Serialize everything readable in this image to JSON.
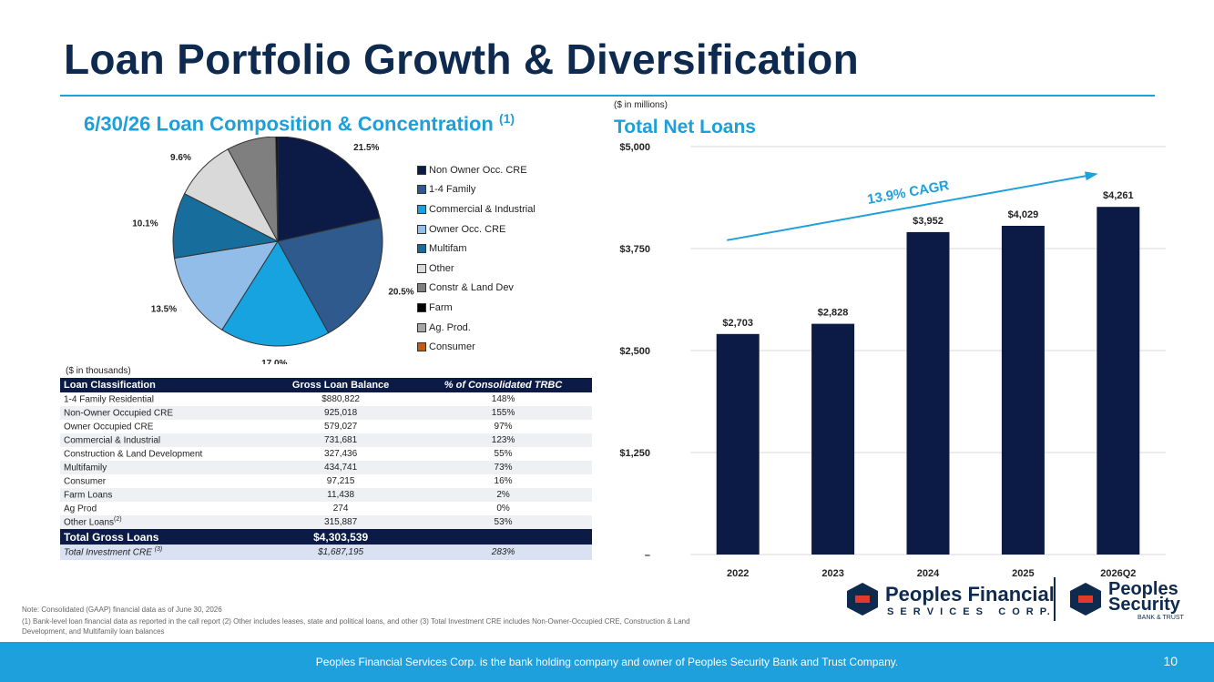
{
  "title": "Loan Portfolio Growth & Diversification",
  "left_section": {
    "title": "6/30/26 Loan Composition & Concentration",
    "note_marker": "(1)"
  },
  "right_section": {
    "unit_note": "($ in millions)",
    "title": "Total Net Loans"
  },
  "table_unit_note": "($ in thousands)",
  "colors": {
    "navy": "#0b1b45",
    "accent": "#1ea0dc",
    "title": "#0e2a4e"
  },
  "chart_data": [
    {
      "type": "pie",
      "title": "6/30/26 Loan Composition & Concentration",
      "legend_position": "right",
      "slices": [
        {
          "label": "Non Owner Occ. CRE",
          "value": 21.5,
          "value_label": "21.5%",
          "color": "#0b1b45"
        },
        {
          "label": "1-4 Family",
          "value": 20.5,
          "value_label": "20.5%",
          "color": "#2e5a8e"
        },
        {
          "label": "Commercial & Industrial",
          "value": 17.0,
          "value_label": "17.0%",
          "color": "#16a3e0"
        },
        {
          "label": "Owner Occ. CRE",
          "value": 13.5,
          "value_label": "13.5%",
          "color": "#93bde9"
        },
        {
          "label": "Multifam",
          "value": 10.1,
          "value_label": "10.1%",
          "color": "#176d9b"
        },
        {
          "label": "Other",
          "value": 9.6,
          "value_label": "9.6%",
          "color": "#d9d9d9"
        },
        {
          "label": "Constr & Land Dev",
          "value": 7.6,
          "value_label": "7.6%",
          "color": "#7f7f7f"
        },
        {
          "label": "Farm",
          "value": 0.3,
          "value_label": "0.3%",
          "color": "#000000"
        },
        {
          "label": "Ag. Prod.",
          "value": 0.0,
          "value_label": "",
          "color": "#a6a6a6"
        },
        {
          "label": "Consumer",
          "value": 0.0,
          "value_label": "",
          "color": "#c55a11"
        }
      ]
    },
    {
      "type": "bar",
      "title": "Total Net Loans",
      "unit": "($ in millions)",
      "categories": [
        "2022",
        "2023",
        "2024",
        "2025",
        "2026Q2"
      ],
      "values": [
        2703,
        2828,
        3952,
        4029,
        4261
      ],
      "value_labels": [
        "$2,703",
        "$2,828",
        "$3,952",
        "$4,029",
        "$4,261"
      ],
      "ylim": [
        0,
        5000
      ],
      "yticks": [
        0,
        1250,
        2500,
        3750,
        5000
      ],
      "ytick_labels": [
        "–",
        "$1,250",
        "$2,500",
        "$3,750",
        "$5,000"
      ],
      "grid": true,
      "annotation": "13.9% CAGR",
      "bar_color": "#0b1b45"
    }
  ],
  "table": {
    "headers": [
      "Loan Classification",
      "Gross Loan Balance",
      "% of Consolidated TRBC"
    ],
    "rows": [
      {
        "name": "1-4 Family Residential",
        "sup": "",
        "balance": "$880,822",
        "pct": "148%"
      },
      {
        "name": "Non-Owner Occupied CRE",
        "sup": "",
        "balance": "925,018",
        "pct": "155%"
      },
      {
        "name": "Owner Occupied CRE",
        "sup": "",
        "balance": "579,027",
        "pct": "97%"
      },
      {
        "name": "Commercial & Industrial",
        "sup": "",
        "balance": "731,681",
        "pct": "123%"
      },
      {
        "name": "Construction & Land Development",
        "sup": "",
        "balance": "327,436",
        "pct": "55%"
      },
      {
        "name": "Multifamily",
        "sup": "",
        "balance": "434,741",
        "pct": "73%"
      },
      {
        "name": "Consumer",
        "sup": "",
        "balance": "97,215",
        "pct": "16%"
      },
      {
        "name": "Farm Loans",
        "sup": "",
        "balance": "11,438",
        "pct": "2%"
      },
      {
        "name": "Ag Prod",
        "sup": "",
        "balance": "274",
        "pct": "0%"
      },
      {
        "name": "Other Loans",
        "sup": "(2)",
        "balance": "315,887",
        "pct": "53%"
      }
    ],
    "total": {
      "name": "Total Gross Loans",
      "balance": "$4,303,539",
      "pct": ""
    },
    "investment": {
      "name": "Total Investment CRE",
      "sup": "(3)",
      "balance": "$1,687,195",
      "pct": "283%"
    }
  },
  "notes": {
    "line1": "Note: Consolidated (GAAP) financial data as of June 30, 2026",
    "line2": "(1) Bank-level loan financial data as reported in the call report (2) Other includes leases, state and political loans, and other (3) Total Investment CRE includes Non-Owner-Occupied CRE, Construction & Land",
    "line3": "Development, and Multifamily loan balances"
  },
  "logos": {
    "pfsc_name": "Peoples Financial",
    "pfsc_sub": "S E R V I C E S   C O R P.",
    "psb_name1": "Peoples",
    "psb_name2": "Security",
    "psb_sub": "BANK & TRUST"
  },
  "footer": {
    "text": "Peoples Financial Services Corp. is the bank holding company and owner of Peoples Security Bank and Trust Company.",
    "page": "10"
  }
}
